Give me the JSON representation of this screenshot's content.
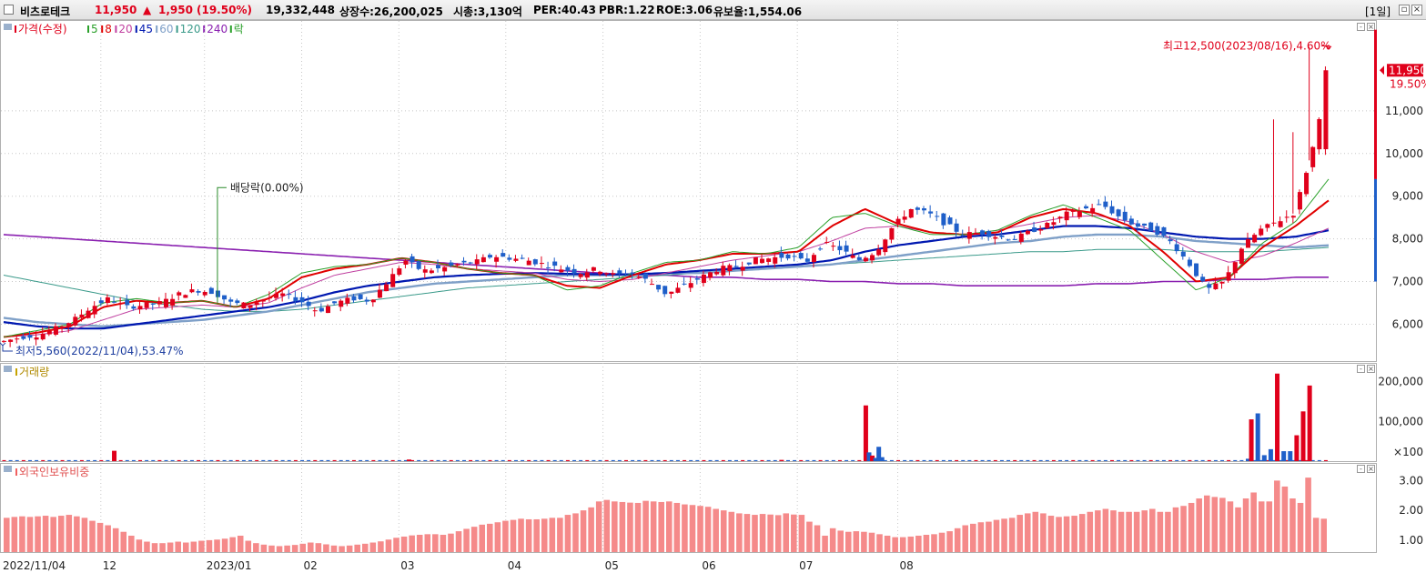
{
  "header": {
    "stock_name": "비츠로테크",
    "price": "11,950",
    "change_arrow": "▲",
    "change": "1,950",
    "change_pct": "(19.50%)",
    "volume": "19,332,448",
    "shares": "상장수:26,200,025",
    "market_cap": "시총:3,130억",
    "per": "PER:40.43",
    "pbr": "PBR:1.22",
    "roe": "ROE:3.06",
    "reserve": "유보율:1,554.06",
    "period": "[1일]",
    "restore_icon": "restore-icon",
    "close_icon": "close-icon"
  },
  "colors": {
    "up": "#e0001b",
    "down": "#1f5fc9",
    "ma5": "#2aa02a",
    "ma8": "#e00000",
    "ma20": "#c040a0",
    "ma45": "#0018b0",
    "ma60": "#7fa0c8",
    "ma120": "#3a9a8a",
    "ma240": "#8a20b0",
    "foreign": "#f58a8a"
  },
  "chart_data": [
    {
      "type": "candlestick",
      "title": "가격(수정)",
      "legend": [
        {
          "label": "가격(수정)",
          "color": "#e0001b"
        },
        {
          "label": "5",
          "color": "#2aa02a"
        },
        {
          "label": "8",
          "color": "#e00000"
        },
        {
          "label": "20",
          "color": "#c040a0"
        },
        {
          "label": "45",
          "color": "#0018b0"
        },
        {
          "label": "60",
          "color": "#7fa0c8"
        },
        {
          "label": "120",
          "color": "#3a9a8a"
        },
        {
          "label": "240",
          "color": "#8a20b0"
        },
        {
          "label": "락",
          "color": "#2aa02a"
        }
      ],
      "y_ticks": [
        "6,000",
        "7,000",
        "8,000",
        "9,000",
        "10,000",
        "11,000"
      ],
      "y_tick_values": [
        6000,
        7000,
        8000,
        9000,
        10000,
        11000
      ],
      "ylim": [
        5200,
        13000
      ],
      "current_price_label": "11,950",
      "current_pct_label": "19.50%",
      "high_annotation": "최고12,500(2023/08/16),4.60%",
      "low_annotation": "최저5,560(2022/11/04),53.47%",
      "dividend_annotation": "배당락(0.00%)",
      "close_keyframes": [
        5600,
        5700,
        5750,
        5900,
        6100,
        6400,
        6600,
        6400,
        6450,
        6500,
        6700,
        6800,
        6750,
        6500,
        6450,
        6600,
        6700,
        6550,
        6300,
        6500,
        6600,
        6550,
        7000,
        7500,
        7250,
        7300,
        7400,
        7450,
        7600,
        7550,
        7500,
        7400,
        7300,
        7200,
        7300,
        7150,
        7200,
        7000,
        6700,
        6900,
        7100,
        7300,
        7350,
        7500,
        7550,
        7600,
        7450,
        7900,
        7750,
        7500,
        7700,
        8300,
        8700,
        8600,
        8350,
        8100,
        8150,
        8050,
        8000,
        8200,
        8350,
        8600,
        8700,
        8800,
        8500,
        8300,
        8200,
        7900,
        7400,
        6800,
        7000,
        7800,
        8200,
        8400,
        8600,
        10000,
        11950
      ],
      "ma_keyframes": {
        "ma5": [
          5700,
          5850,
          6000,
          6500,
          6600,
          6500,
          6550,
          6400,
          6700,
          7200,
          7350,
          7400,
          7550,
          7450,
          7300,
          7200,
          7150,
          6800,
          6900,
          7200,
          7450,
          7500,
          7700,
          7650,
          7800,
          8500,
          8600,
          8300,
          8100,
          8100,
          8200,
          8550,
          8800,
          8500,
          8200,
          7500,
          6800,
          7100,
          7900,
          8400,
          9400
        ],
        "ma8": [
          5700,
          5800,
          5950,
          6400,
          6550,
          6500,
          6550,
          6400,
          6600,
          7100,
          7300,
          7400,
          7550,
          7450,
          7300,
          7200,
          7150,
          6900,
          6850,
          7150,
          7400,
          7500,
          7650,
          7650,
          7700,
          8300,
          8700,
          8350,
          8150,
          8100,
          8150,
          8500,
          8700,
          8600,
          8300,
          7700,
          7000,
          7100,
          7800,
          8300,
          8900
        ],
        "ma20": [
          5700,
          5750,
          5850,
          6100,
          6350,
          6400,
          6450,
          6400,
          6500,
          6850,
          7150,
          7300,
          7450,
          7400,
          7300,
          7250,
          7200,
          7050,
          7000,
          7050,
          7200,
          7350,
          7500,
          7600,
          7700,
          7950,
          8250,
          8300,
          8150,
          8100,
          8200,
          8350,
          8500,
          8550,
          8400,
          8100,
          7700,
          7450,
          7600,
          7900,
          8250
        ],
        "ma45": [
          6050,
          5950,
          5900,
          5900,
          6000,
          6100,
          6200,
          6300,
          6400,
          6550,
          6750,
          6900,
          7000,
          7100,
          7150,
          7180,
          7200,
          7180,
          7170,
          7170,
          7200,
          7250,
          7300,
          7350,
          7400,
          7500,
          7700,
          7850,
          7950,
          8050,
          8100,
          8200,
          8300,
          8300,
          8250,
          8150,
          8050,
          8000,
          8000,
          8050,
          8200
        ],
        "ma60": [
          6150,
          6050,
          6000,
          5950,
          6000,
          6050,
          6100,
          6200,
          6300,
          6450,
          6600,
          6750,
          6850,
          6950,
          7000,
          7050,
          7100,
          7150,
          7150,
          7150,
          7200,
          7200,
          7250,
          7300,
          7350,
          7400,
          7500,
          7600,
          7700,
          7800,
          7900,
          7950,
          8050,
          8100,
          8100,
          8050,
          7950,
          7900,
          7850,
          7800,
          7850
        ],
        "ma120": [
          7150,
          7000,
          6850,
          6700,
          6550,
          6450,
          6350,
          6300,
          6300,
          6350,
          6450,
          6550,
          6650,
          6750,
          6850,
          6900,
          6950,
          7000,
          7050,
          7100,
          7150,
          7200,
          7250,
          7300,
          7350,
          7400,
          7450,
          7500,
          7550,
          7600,
          7650,
          7700,
          7700,
          7750,
          7750,
          7750,
          7700,
          7700,
          7700,
          7750,
          7800
        ],
        "ma240": [
          8100,
          8050,
          8000,
          7950,
          7900,
          7850,
          7800,
          7750,
          7700,
          7650,
          7600,
          7550,
          7500,
          7450,
          7400,
          7350,
          7300,
          7250,
          7200,
          7150,
          7150,
          7100,
          7100,
          7050,
          7050,
          7000,
          7000,
          6950,
          6950,
          6900,
          6900,
          6900,
          6900,
          6950,
          6950,
          7000,
          7000,
          7050,
          7050,
          7100,
          7100
        ]
      }
    },
    {
      "type": "bar",
      "title": "거래량",
      "y_ticks": [
        "200,000",
        "100,000",
        "×100"
      ],
      "y_tick_values": [
        200000,
        100000,
        0
      ],
      "ylim": [
        0,
        240000
      ],
      "spikes": [
        {
          "day": 34,
          "value": 26000
        },
        {
          "day": 125,
          "value": 4000
        },
        {
          "day": 240,
          "value": 3000
        },
        {
          "day": 266,
          "value": 140000
        },
        {
          "day": 267,
          "value": 22000
        },
        {
          "day": 268,
          "value": 14000
        },
        {
          "day": 269,
          "value": 8000
        },
        {
          "day": 270,
          "value": 36000
        },
        {
          "day": 271,
          "value": 10000
        },
        {
          "day": 384,
          "value": 6000
        },
        {
          "day": 385,
          "value": 105000
        },
        {
          "day": 387,
          "value": 120000
        },
        {
          "day": 389,
          "value": 15000
        },
        {
          "day": 391,
          "value": 30000
        },
        {
          "day": 393,
          "value": 220000
        },
        {
          "day": 395,
          "value": 25000
        },
        {
          "day": 397,
          "value": 25000
        },
        {
          "day": 399,
          "value": 65000
        },
        {
          "day": 401,
          "value": 125000
        },
        {
          "day": 403,
          "value": 190000
        }
      ]
    },
    {
      "type": "bar",
      "title": "외국인보유비중",
      "y_ticks": [
        "3.00",
        "2.00",
        "1.00"
      ],
      "y_tick_values": [
        3.0,
        2.0,
        1.0
      ],
      "ylim": [
        0.6,
        3.5
      ],
      "values": [
        1.75,
        1.78,
        1.8,
        1.78,
        1.8,
        1.82,
        1.78,
        1.82,
        1.85,
        1.8,
        1.75,
        1.65,
        1.58,
        1.5,
        1.4,
        1.28,
        1.15,
        1.02,
        0.95,
        0.9,
        0.9,
        0.92,
        0.95,
        0.92,
        0.95,
        0.98,
        1.0,
        1.02,
        1.05,
        1.1,
        1.15,
        0.98,
        0.9,
        0.85,
        0.82,
        0.8,
        0.82,
        0.84,
        0.88,
        0.92,
        0.9,
        0.86,
        0.82,
        0.8,
        0.82,
        0.85,
        0.88,
        0.92,
        0.96,
        1.02,
        1.08,
        1.12,
        1.16,
        1.18,
        1.2,
        1.2,
        1.18,
        1.22,
        1.3,
        1.38,
        1.45,
        1.52,
        1.55,
        1.6,
        1.65,
        1.68,
        1.72,
        1.7,
        1.7,
        1.72,
        1.75,
        1.75,
        1.85,
        1.9,
        2.0,
        2.1,
        2.3,
        2.35,
        2.3,
        2.28,
        2.26,
        2.25,
        2.32,
        2.3,
        2.28,
        2.3,
        2.25,
        2.2,
        2.18,
        2.15,
        2.12,
        2.05,
        2.0,
        1.95,
        1.9,
        1.88,
        1.85,
        1.88,
        1.86,
        1.84,
        1.9,
        1.86,
        1.85,
        1.62,
        1.5,
        1.15,
        1.4,
        1.32,
        1.28,
        1.3,
        1.28,
        1.25,
        1.2,
        1.15,
        1.1,
        1.1,
        1.12,
        1.15,
        1.18,
        1.2,
        1.25,
        1.3,
        1.4,
        1.5,
        1.55,
        1.6,
        1.62,
        1.68,
        1.72,
        1.75,
        1.85,
        1.9,
        1.95,
        1.9,
        1.82,
        1.78,
        1.8,
        1.82,
        1.88,
        1.95,
        2.0,
        2.05,
        2.0,
        1.95,
        1.95,
        1.95,
        2.0,
        2.05,
        1.95,
        1.95,
        2.1,
        2.15,
        2.25,
        2.4,
        2.5,
        2.45,
        2.42,
        2.3,
        2.1,
        2.4,
        2.6,
        2.3,
        2.3,
        3.0,
        2.8,
        2.4,
        2.25,
        3.1,
        1.75,
        1.72
      ]
    }
  ],
  "x_axis": {
    "labels": [
      "2022/11/04",
      "12",
      "2023/01",
      "02",
      "03",
      "04",
      "05",
      "06",
      "07",
      "08"
    ],
    "label_days": [
      0,
      30,
      62,
      92,
      122,
      155,
      185,
      215,
      245,
      276
    ]
  }
}
